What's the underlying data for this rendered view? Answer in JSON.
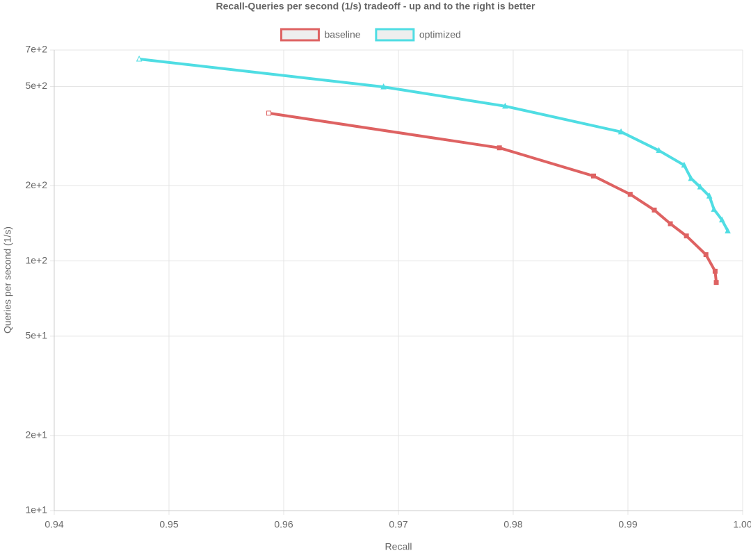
{
  "chart_data": {
    "type": "line",
    "title": "Recall-Queries per second (1/s) tradeoff - up and to the right is better",
    "x_label": "Recall",
    "y_label": "Queries per second (1/s)",
    "y_scale": "log",
    "grid": true,
    "legend": "top",
    "xlim": [
      0.94,
      1.0
    ],
    "xticks": [
      0.94,
      0.95,
      0.96,
      0.97,
      0.98,
      0.99,
      {
        "value": 1.0,
        "label": "1.00"
      }
    ],
    "ylim": [
      10,
      700
    ],
    "yticks": [
      {
        "value": 10,
        "label": "1e+1"
      },
      {
        "value": 20,
        "label": "2e+1"
      },
      {
        "value": 50,
        "label": "5e+1"
      },
      {
        "value": 100,
        "label": "1e+2"
      },
      {
        "value": 200,
        "label": "2e+2"
      },
      {
        "value": 500,
        "label": "5e+2"
      },
      {
        "value": 700,
        "label": "7e+2"
      }
    ],
    "series": [
      {
        "name": "baseline",
        "color": "#de6262",
        "marker": "square",
        "x": [
          0.9587,
          0.9788,
          0.987,
          0.9902,
          0.9923,
          0.9937,
          0.9951,
          0.9968,
          0.9976,
          0.9977
        ],
        "values": [
          391,
          284,
          219,
          185,
          160,
          141,
          126,
          106,
          91,
          82
        ]
      },
      {
        "name": "optimized",
        "color": "#4fdde3",
        "marker": "triangle",
        "x": [
          0.9474,
          0.9687,
          0.9793,
          0.9894,
          0.9927,
          0.9949,
          0.9955,
          0.9963,
          0.9971,
          0.9975,
          0.9982,
          0.9987
        ],
        "values": [
          644,
          498,
          417,
          329,
          277,
          242,
          214,
          198,
          182,
          161,
          146,
          132
        ]
      }
    ]
  }
}
